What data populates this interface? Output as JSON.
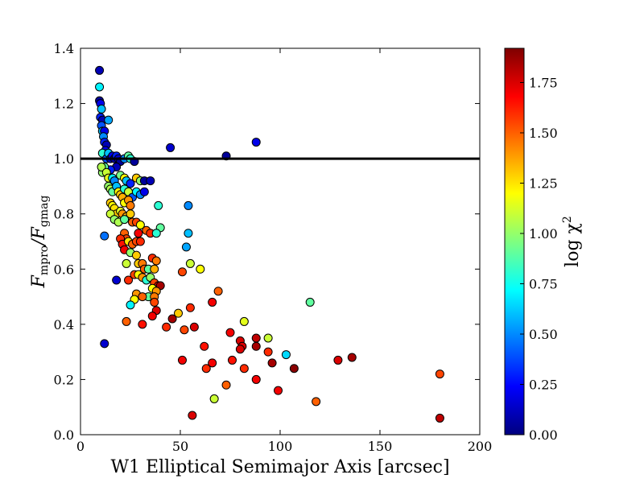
{
  "chart_data": {
    "type": "scatter",
    "title": "",
    "xlabel": "W1 Elliptical Semimajor Axis [arcsec]",
    "ylabel": {
      "main": "F",
      "sub1": "mpro",
      "sep": "/F",
      "sub2": "gmag"
    },
    "xlim": [
      0,
      200
    ],
    "ylim": [
      0.0,
      1.4
    ],
    "x_ticks": [
      0,
      50,
      100,
      150,
      200
    ],
    "y_ticks": [
      0.0,
      0.2,
      0.4,
      0.6,
      0.8,
      1.0,
      1.2,
      1.4
    ],
    "x_tick_labels": [
      "0",
      "50",
      "100",
      "150",
      "200"
    ],
    "y_tick_labels": [
      "0.0",
      "0.2",
      "0.4",
      "0.6",
      "0.8",
      "1.0",
      "1.2",
      "1.4"
    ],
    "reference_line": {
      "y": 1.0,
      "color": "#000000"
    },
    "grid": false,
    "colorbar": {
      "label": "log χ",
      "label_sup": "2",
      "range": [
        0.0,
        1.92
      ],
      "ticks": [
        0.0,
        0.25,
        0.5,
        0.75,
        1.0,
        1.25,
        1.5,
        1.75
      ],
      "tick_labels": [
        "0.00",
        "0.25",
        "0.50",
        "0.75",
        "1.00",
        "1.25",
        "1.50",
        "1.75"
      ],
      "colormap": "jet"
    },
    "points": [
      [
        9.5,
        1.32,
        0.1
      ],
      [
        9.5,
        1.26,
        0.7
      ],
      [
        9.5,
        1.21,
        0.05
      ],
      [
        10,
        1.2,
        0.2
      ],
      [
        10.5,
        1.18,
        0.6
      ],
      [
        10,
        1.15,
        0.3
      ],
      [
        11,
        1.14,
        0.1
      ],
      [
        10.5,
        1.12,
        0.4
      ],
      [
        11,
        1.1,
        0.6
      ],
      [
        12,
        1.1,
        0.2
      ],
      [
        11.5,
        1.08,
        0.5
      ],
      [
        12,
        1.06,
        0.3
      ],
      [
        13,
        1.05,
        0.1
      ],
      [
        14,
        1.14,
        0.55
      ],
      [
        12.5,
        1.03,
        0.2
      ],
      [
        11,
        1.02,
        0.8
      ],
      [
        13,
        1.0,
        0.4
      ],
      [
        14,
        1.02,
        0.6
      ],
      [
        15,
        1.0,
        0.1
      ],
      [
        16,
        1.01,
        0.2
      ],
      [
        17,
        1.0,
        0.05
      ],
      [
        18,
        1.01,
        0.3
      ],
      [
        19,
        1.0,
        0.15
      ],
      [
        20,
        0.99,
        0.05
      ],
      [
        22,
        1.0,
        0.5
      ],
      [
        24,
        1.01,
        0.9
      ],
      [
        25,
        1.0,
        0.8
      ],
      [
        27,
        0.99,
        0.05
      ],
      [
        18,
        0.97,
        0.1
      ],
      [
        15,
        0.96,
        0.3
      ],
      [
        12,
        0.97,
        0.9
      ],
      [
        11,
        0.95,
        1.0
      ],
      [
        10.5,
        0.97,
        1.05
      ],
      [
        13,
        0.95,
        1.1
      ],
      [
        14,
        0.93,
        1.15
      ],
      [
        16,
        0.93,
        0.7
      ],
      [
        17,
        0.92,
        0.5
      ],
      [
        20,
        0.94,
        0.95
      ],
      [
        22,
        0.93,
        1.2
      ],
      [
        23,
        0.92,
        0.6
      ],
      [
        25,
        0.91,
        0.3
      ],
      [
        28,
        0.93,
        1.3
      ],
      [
        30,
        0.92,
        1.0
      ],
      [
        32,
        0.92,
        0.05
      ],
      [
        35,
        0.92,
        0.1
      ],
      [
        14,
        0.9,
        1.0
      ],
      [
        15,
        0.89,
        1.05
      ],
      [
        16,
        0.88,
        0.9
      ],
      [
        18,
        0.9,
        0.6
      ],
      [
        19,
        0.88,
        1.2
      ],
      [
        20,
        0.87,
        1.3
      ],
      [
        22,
        0.89,
        0.8
      ],
      [
        24,
        0.88,
        1.1
      ],
      [
        26,
        0.86,
        0.4
      ],
      [
        28,
        0.88,
        0.7
      ],
      [
        30,
        0.87,
        0.5
      ],
      [
        32,
        0.88,
        0.2
      ],
      [
        21,
        0.86,
        1.35
      ],
      [
        22,
        0.84,
        1.2
      ],
      [
        24,
        0.85,
        1.4
      ],
      [
        25,
        0.83,
        1.45
      ],
      [
        15,
        0.84,
        1.3
      ],
      [
        16,
        0.83,
        1.2
      ],
      [
        17,
        0.82,
        1.25
      ],
      [
        18,
        0.8,
        1.3
      ],
      [
        20,
        0.81,
        1.15
      ],
      [
        21,
        0.8,
        1.4
      ],
      [
        23,
        0.79,
        1.35
      ],
      [
        25,
        0.8,
        1.3
      ],
      [
        15,
        0.8,
        1.1
      ],
      [
        17,
        0.78,
        1.0
      ],
      [
        19,
        0.77,
        1.05
      ],
      [
        22,
        0.78,
        0.9
      ],
      [
        26,
        0.77,
        1.5
      ],
      [
        28,
        0.77,
        1.55
      ],
      [
        30,
        0.76,
        1.2
      ],
      [
        33,
        0.74,
        1.5
      ],
      [
        35,
        0.73,
        1.6
      ],
      [
        39,
        0.83,
        0.8
      ],
      [
        40,
        0.75,
        0.9
      ],
      [
        38,
        0.73,
        0.8
      ],
      [
        54,
        0.83,
        0.5
      ],
      [
        22,
        0.73,
        1.5
      ],
      [
        23,
        0.71,
        1.55
      ],
      [
        20,
        0.71,
        1.6
      ],
      [
        21,
        0.69,
        1.65
      ],
      [
        24,
        0.7,
        1.25
      ],
      [
        26,
        0.69,
        1.5
      ],
      [
        28,
        0.7,
        1.55
      ],
      [
        29,
        0.73,
        1.7
      ],
      [
        30,
        0.7,
        1.6
      ],
      [
        22,
        0.67,
        1.7
      ],
      [
        25,
        0.66,
        1.0
      ],
      [
        28,
        0.65,
        1.3
      ],
      [
        29,
        0.62,
        1.3
      ],
      [
        31,
        0.62,
        1.45
      ],
      [
        32,
        0.6,
        1.5
      ],
      [
        34,
        0.6,
        0.9
      ],
      [
        36,
        0.64,
        1.6
      ],
      [
        38,
        0.63,
        1.45
      ],
      [
        37,
        0.6,
        1.35
      ],
      [
        23,
        0.62,
        1.1
      ],
      [
        24,
        0.56,
        1.6
      ],
      [
        27,
        0.58,
        1.55
      ],
      [
        29,
        0.58,
        1.2
      ],
      [
        31,
        0.57,
        1.4
      ],
      [
        33,
        0.56,
        0.8
      ],
      [
        35,
        0.57,
        1.0
      ],
      [
        37,
        0.55,
        1.55
      ],
      [
        39,
        0.54,
        1.7
      ],
      [
        40,
        0.54,
        1.85
      ],
      [
        36,
        0.53,
        1.2
      ],
      [
        38,
        0.52,
        1.4
      ],
      [
        34,
        0.5,
        0.9
      ],
      [
        28,
        0.51,
        1.4
      ],
      [
        27,
        0.49,
        1.2
      ],
      [
        25,
        0.47,
        0.7
      ],
      [
        31,
        0.5,
        1.5
      ],
      [
        37,
        0.5,
        1.45
      ],
      [
        37,
        0.48,
        1.55
      ],
      [
        38,
        0.45,
        1.75
      ],
      [
        36,
        0.43,
        1.7
      ],
      [
        31,
        0.4,
        1.65
      ],
      [
        23,
        0.41,
        1.5
      ],
      [
        18,
        0.56,
        0.15
      ],
      [
        12,
        0.72,
        0.45
      ],
      [
        12,
        0.33,
        0.15
      ],
      [
        45,
        1.04,
        0.15
      ],
      [
        73,
        1.01,
        0.05
      ],
      [
        88,
        1.06,
        0.2
      ],
      [
        54,
        0.73,
        0.6
      ],
      [
        53,
        0.68,
        0.55
      ],
      [
        55,
        0.62,
        1.1
      ],
      [
        60,
        0.6,
        1.2
      ],
      [
        51,
        0.59,
        1.55
      ],
      [
        69,
        0.52,
        1.5
      ],
      [
        66,
        0.48,
        1.7
      ],
      [
        55,
        0.46,
        1.6
      ],
      [
        49,
        0.44,
        1.3
      ],
      [
        46,
        0.42,
        1.85
      ],
      [
        43,
        0.39,
        1.6
      ],
      [
        52,
        0.38,
        1.55
      ],
      [
        57,
        0.39,
        1.75
      ],
      [
        62,
        0.32,
        1.65
      ],
      [
        75,
        0.37,
        1.7
      ],
      [
        82,
        0.41,
        1.15
      ],
      [
        80,
        0.34,
        1.75
      ],
      [
        81,
        0.32,
        1.75
      ],
      [
        80,
        0.31,
        1.75
      ],
      [
        88,
        0.35,
        1.8
      ],
      [
        88,
        0.32,
        1.85
      ],
      [
        94,
        0.35,
        1.1
      ],
      [
        94,
        0.3,
        1.6
      ],
      [
        103,
        0.29,
        0.65
      ],
      [
        115,
        0.48,
        0.9
      ],
      [
        76,
        0.27,
        1.65
      ],
      [
        82,
        0.24,
        1.6
      ],
      [
        96,
        0.26,
        1.85
      ],
      [
        107,
        0.24,
        1.9
      ],
      [
        129,
        0.27,
        1.75
      ],
      [
        136,
        0.28,
        1.85
      ],
      [
        51,
        0.27,
        1.7
      ],
      [
        63,
        0.24,
        1.6
      ],
      [
        66,
        0.26,
        1.7
      ],
      [
        88,
        0.2,
        1.7
      ],
      [
        73,
        0.18,
        1.5
      ],
      [
        99,
        0.16,
        1.7
      ],
      [
        67,
        0.13,
        1.1
      ],
      [
        118,
        0.12,
        1.5
      ],
      [
        56,
        0.07,
        1.75
      ],
      [
        180,
        0.22,
        1.55
      ],
      [
        180,
        0.06,
        1.8
      ]
    ]
  }
}
